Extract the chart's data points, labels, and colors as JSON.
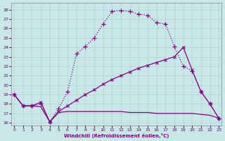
{
  "xlabel": "Windchill (Refroidissement éolien,°C)",
  "background_color": "#c8e8e8",
  "line_color": "#880088",
  "grid_color": "#a8cccc",
  "xlim": [
    -0.3,
    23.3
  ],
  "ylim": [
    15.7,
    28.7
  ],
  "yticks": [
    16,
    17,
    18,
    19,
    20,
    21,
    22,
    23,
    24,
    25,
    26,
    27,
    28
  ],
  "xticks": [
    0,
    1,
    2,
    3,
    4,
    5,
    6,
    7,
    8,
    9,
    10,
    11,
    12,
    13,
    14,
    15,
    16,
    17,
    18,
    19,
    20,
    21,
    22,
    23
  ],
  "bell_x": [
    0,
    1,
    2,
    3,
    4,
    5,
    6,
    7,
    8,
    9,
    10,
    11,
    12,
    13,
    14,
    15,
    16,
    17,
    18,
    19,
    20,
    21,
    22,
    23
  ],
  "bell_y": [
    19,
    17.8,
    17.8,
    18.0,
    16.1,
    17.5,
    19.3,
    23.3,
    24.1,
    25.0,
    26.5,
    27.8,
    27.9,
    27.8,
    27.5,
    27.4,
    26.6,
    26.5,
    24.1,
    22.0,
    21.5,
    19.3,
    18.0,
    16.5
  ],
  "diag_x": [
    0,
    1,
    2,
    3,
    4,
    5,
    6,
    7,
    8,
    9,
    10,
    11,
    12,
    13,
    14,
    15,
    16,
    17,
    18,
    19,
    20,
    21,
    22,
    23
  ],
  "diag_y": [
    19,
    17.8,
    17.8,
    18.2,
    16.1,
    17.2,
    17.8,
    18.4,
    19.0,
    19.5,
    20.1,
    20.6,
    21.0,
    21.4,
    21.8,
    22.1,
    22.4,
    22.7,
    23.0,
    24.0,
    21.6,
    19.3,
    18.0,
    16.5
  ],
  "flat_x": [
    0,
    1,
    2,
    3,
    4,
    5,
    6,
    7,
    8,
    9,
    10,
    11,
    12,
    13,
    14,
    15,
    16,
    17,
    18,
    19,
    20,
    21,
    22,
    23
  ],
  "flat_y": [
    19,
    17.8,
    17.8,
    17.7,
    16.1,
    17.1,
    17.2,
    17.2,
    17.2,
    17.2,
    17.2,
    17.2,
    17.2,
    17.1,
    17.1,
    17.1,
    17.0,
    17.0,
    17.0,
    17.0,
    17.0,
    16.9,
    16.8,
    16.5
  ]
}
